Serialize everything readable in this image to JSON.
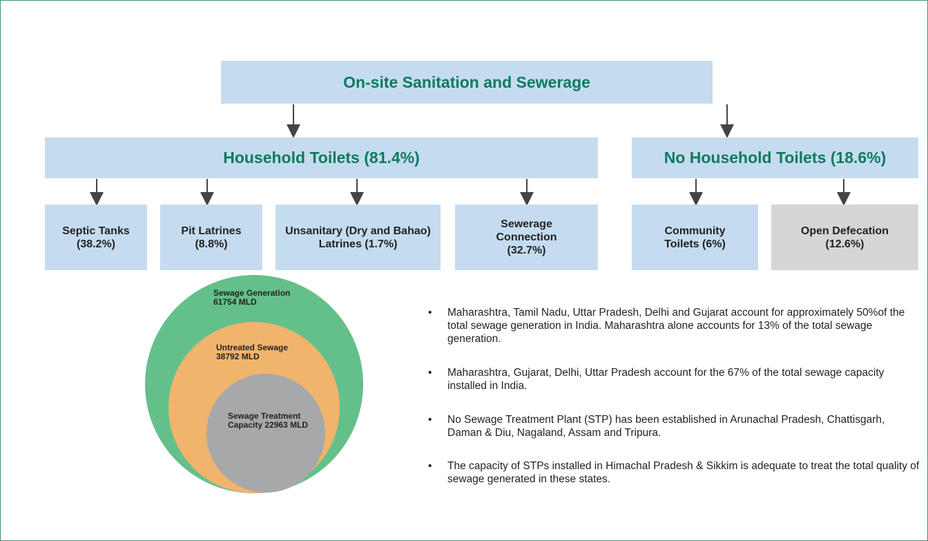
{
  "title": "On-site Sanitation and Sewerage",
  "groups": [
    {
      "label": "Household Toilets (81.4%)",
      "children": [
        "Septic Tanks (38.2%)",
        "Pit Latrines (8.8%)",
        "Unsanitary (Dry and Bahao) Latrines (1.7%)",
        "Sewerage Connection (32.7%)"
      ]
    },
    {
      "label": "No Household Toilets (18.6%)",
      "children": [
        "Community Toilets (6%)",
        "Open Defecation (12.6%)"
      ]
    }
  ],
  "circles": [
    {
      "name": "Sewage Generation",
      "value": "61754 MLD"
    },
    {
      "name": "Untreated Sewage",
      "value": "38792 MLD"
    },
    {
      "name": "Sewage Treatment Capacity",
      "value": "22963 MLD"
    }
  ],
  "bullets": [
    "Maharashtra, Tamil Nadu, Uttar Pradesh, Delhi and Gujarat account for approximately 50%of the total sewage generation in India. Maharashtra alone accounts for 13% of the total sewage generation.",
    "Maharashtra, Gujarat, Delhi, Uttar Pradesh account for the 67% of the total sewage capacity installed in India.",
    "No Sewage Treatment Plant (STP) has been established in Arunachal Pradesh, Chattisgarh, Daman & Diu, Nagaland, Assam and Tripura.",
    "The capacity of STPs installed in Himachal Pradesh & Sikkim is adequate to treat the total quality of sewage generated in these states."
  ]
}
